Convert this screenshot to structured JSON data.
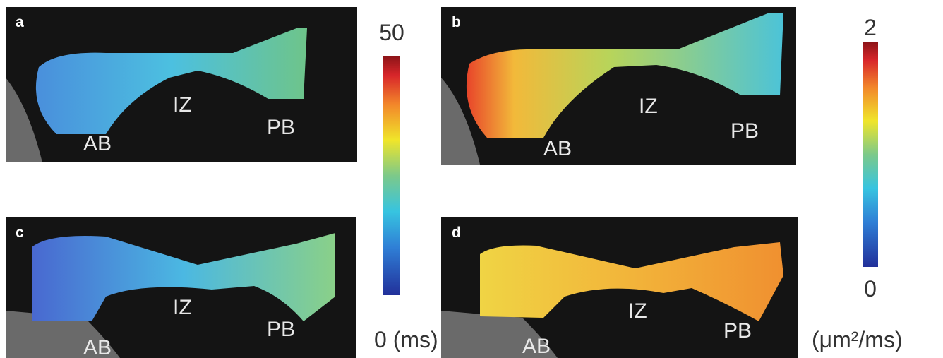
{
  "panels": [
    {
      "letter": "a",
      "regions": [
        "AB",
        "IZ",
        "PB"
      ]
    },
    {
      "letter": "b",
      "regions": [
        "AB",
        "IZ",
        "PB"
      ]
    },
    {
      "letter": "c",
      "regions": [
        "AB",
        "IZ",
        "PB"
      ]
    },
    {
      "letter": "d",
      "regions": [
        "AB",
        "IZ",
        "PB"
      ]
    }
  ],
  "colorbars": [
    {
      "top_label": "50",
      "bottom_label": "0 (ms)"
    },
    {
      "top_label": "2",
      "bottom_label": "0",
      "unit_label": "(μm²/ms)"
    }
  ]
}
